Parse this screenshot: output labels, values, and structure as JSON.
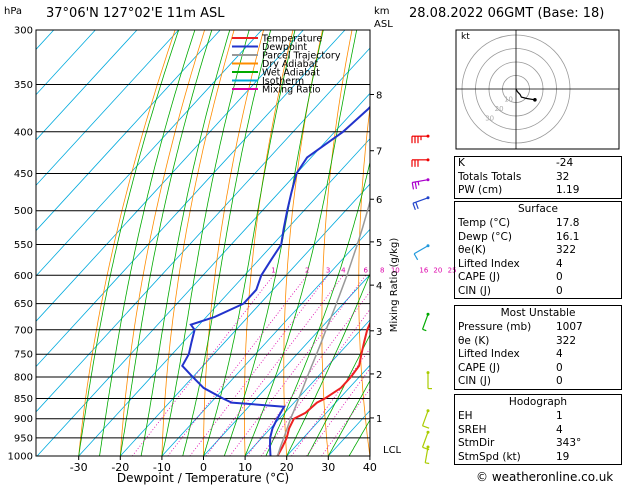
{
  "header": {
    "location": "37°06'N  127°02'E  11m  ASL",
    "datetime": "28.08.2022  06GMT  (Base: 18)",
    "left_unit": "hPa",
    "km_unit": "km",
    "asl_unit": "ASL",
    "xlabel": "Dewpoint / Temperature (°C)",
    "mixing_label": "Mixing Ratio (g/kg)",
    "lcl_label": "LCL",
    "hodo_unit": "kt",
    "credit": "© weatheronline.co.uk"
  },
  "legend": [
    {
      "label": "Temperature",
      "color": "#ee2222"
    },
    {
      "label": "Dewpoint",
      "color": "#2233cc"
    },
    {
      "label": "Parcel Trajectory",
      "color": "#999999"
    },
    {
      "label": "Dry Adiabat",
      "color": "#ff8c00"
    },
    {
      "label": "Wet Adiabat",
      "color": "#00aa00"
    },
    {
      "label": "Isotherm",
      "color": "#00aadd"
    },
    {
      "label": "Mixing Ratio",
      "color": "#dd00aa"
    }
  ],
  "indices": [
    {
      "label": "K",
      "value": "-24"
    },
    {
      "label": "Totals Totals",
      "value": "32"
    },
    {
      "label": "PW (cm)",
      "value": "1.19"
    }
  ],
  "surface": {
    "title": "Surface",
    "rows": [
      {
        "label": "Temp (°C)",
        "value": "17.8"
      },
      {
        "label": "Dewp (°C)",
        "value": "16.1"
      },
      {
        "label": "θe(K)",
        "value": "322"
      },
      {
        "label": "Lifted Index",
        "value": "4"
      },
      {
        "label": "CAPE (J)",
        "value": "0"
      },
      {
        "label": "CIN (J)",
        "value": "0"
      }
    ]
  },
  "most_unstable": {
    "title": "Most Unstable",
    "rows": [
      {
        "label": "Pressure (mb)",
        "value": "1007"
      },
      {
        "label": "θe (K)",
        "value": "322"
      },
      {
        "label": "Lifted Index",
        "value": "4"
      },
      {
        "label": "CAPE (J)",
        "value": "0"
      },
      {
        "label": "CIN (J)",
        "value": "0"
      }
    ]
  },
  "hodograph": {
    "title": "Hodograph",
    "rows": [
      {
        "label": "EH",
        "value": "1"
      },
      {
        "label": "SREH",
        "value": "4"
      },
      {
        "label": "StmDir",
        "value": "343°"
      },
      {
        "label": "StmSpd (kt)",
        "value": "19"
      }
    ]
  },
  "chart_data": {
    "type": "line",
    "title": "",
    "xlabel": "Dewpoint / Temperature (°C)",
    "ylabel": "hPa",
    "x_ticks": [
      -30,
      -20,
      -10,
      0,
      10,
      20,
      30,
      40
    ],
    "pressure_ticks": [
      300,
      350,
      400,
      450,
      500,
      550,
      600,
      650,
      700,
      750,
      800,
      850,
      900,
      950,
      1000
    ],
    "km_ticks": [
      {
        "label": "8",
        "p": 360
      },
      {
        "label": "7",
        "p": 422
      },
      {
        "label": "6",
        "p": 484
      },
      {
        "label": "5",
        "p": 546
      },
      {
        "label": "4",
        "p": 617
      },
      {
        "label": "3",
        "p": 702
      },
      {
        "label": "2",
        "p": 793
      },
      {
        "label": "1",
        "p": 898
      }
    ],
    "mixing_ratio_labels": [
      "1",
      "2",
      "3",
      "4",
      "6",
      "8",
      "10",
      "16",
      "20",
      "25"
    ],
    "series": [
      {
        "name": "Temperature",
        "color": "#ee2222",
        "points": [
          [
            1000,
            17.8
          ],
          [
            975,
            17
          ],
          [
            950,
            16
          ],
          [
            925,
            14.5
          ],
          [
            900,
            13.5
          ],
          [
            885,
            15
          ],
          [
            860,
            15.5
          ],
          [
            850,
            16.5
          ],
          [
            825,
            18
          ],
          [
            800,
            18
          ],
          [
            775,
            17.5
          ],
          [
            750,
            15.5
          ],
          [
            725,
            13.5
          ],
          [
            700,
            11.5
          ],
          [
            675,
            10
          ],
          [
            650,
            8
          ],
          [
            625,
            6
          ],
          [
            600,
            4
          ],
          [
            575,
            1.5
          ],
          [
            550,
            -1
          ],
          [
            525,
            -3.5
          ],
          [
            500,
            -6
          ],
          [
            475,
            -8.5
          ],
          [
            450,
            -10
          ],
          [
            425,
            -12
          ],
          [
            400,
            -15.5
          ],
          [
            375,
            -19
          ],
          [
            350,
            -22.5
          ],
          [
            325,
            -26.5
          ],
          [
            300,
            -30
          ]
        ]
      },
      {
        "name": "Dewpoint",
        "color": "#2233cc",
        "points": [
          [
            1000,
            16.1
          ],
          [
            975,
            14
          ],
          [
            950,
            12
          ],
          [
            925,
            10.5
          ],
          [
            900,
            9.5
          ],
          [
            870,
            8.5
          ],
          [
            860,
            -5
          ],
          [
            850,
            -8
          ],
          [
            825,
            -15
          ],
          [
            800,
            -20
          ],
          [
            775,
            -25
          ],
          [
            750,
            -26
          ],
          [
            725,
            -28
          ],
          [
            700,
            -30
          ],
          [
            690,
            -32
          ],
          [
            675,
            -28
          ],
          [
            650,
            -24
          ],
          [
            625,
            -24
          ],
          [
            600,
            -26
          ],
          [
            575,
            -27
          ],
          [
            550,
            -28
          ],
          [
            525,
            -31
          ],
          [
            500,
            -34
          ],
          [
            475,
            -37
          ],
          [
            450,
            -40
          ],
          [
            430,
            -41
          ],
          [
            400,
            -38
          ],
          [
            375,
            -37
          ],
          [
            350,
            -37
          ],
          [
            325,
            -38
          ],
          [
            300,
            -38
          ]
        ]
      },
      {
        "name": "Parcel Trajectory",
        "color": "#999999",
        "points": [
          [
            1000,
            17.8
          ],
          [
            975,
            16.5
          ],
          [
            950,
            15.3
          ],
          [
            925,
            14
          ],
          [
            900,
            12.7
          ],
          [
            875,
            11.5
          ],
          [
            850,
            10.2
          ],
          [
            825,
            8.9
          ],
          [
            800,
            7.5
          ],
          [
            775,
            6.1
          ],
          [
            750,
            4.7
          ],
          [
            725,
            3.2
          ],
          [
            700,
            1.6
          ],
          [
            675,
            0
          ],
          [
            650,
            -1.7
          ],
          [
            625,
            -3.5
          ],
          [
            600,
            -5.4
          ],
          [
            575,
            -7.5
          ],
          [
            550,
            -9.7
          ],
          [
            525,
            -12.1
          ],
          [
            500,
            -14.7
          ],
          [
            475,
            -17.5
          ],
          [
            450,
            -20.5
          ],
          [
            425,
            -23.8
          ],
          [
            400,
            -27.4
          ],
          [
            375,
            -31.4
          ],
          [
            350,
            -35.8
          ],
          [
            325,
            -40.6
          ],
          [
            300,
            -46
          ]
        ]
      }
    ],
    "wind_barbs": [
      {
        "p": 405,
        "dir": 270,
        "kt": 35,
        "color": "#ee0000"
      },
      {
        "p": 433,
        "dir": 270,
        "kt": 30,
        "color": "#ee0000"
      },
      {
        "p": 458,
        "dir": 260,
        "kt": 25,
        "color": "#aa00cc"
      },
      {
        "p": 482,
        "dir": 250,
        "kt": 20,
        "color": "#2244cc"
      },
      {
        "p": 552,
        "dir": 240,
        "kt": 10,
        "color": "#2299dd"
      },
      {
        "p": 670,
        "dir": 200,
        "kt": 5,
        "color": "#00aa00"
      },
      {
        "p": 790,
        "dir": 180,
        "kt": 5,
        "color": "#aacc00"
      },
      {
        "p": 880,
        "dir": 200,
        "kt": 10,
        "color": "#aacc00"
      },
      {
        "p": 935,
        "dir": 200,
        "kt": 10,
        "color": "#aacc00"
      },
      {
        "p": 975,
        "dir": 190,
        "kt": 5,
        "color": "#aacc00"
      }
    ],
    "hodograph_rings_kt": [
      10,
      20,
      30,
      40
    ],
    "hodograph_ring_labels": [
      "10",
      "20",
      "30"
    ],
    "hodograph_trace": [
      [
        0,
        0
      ],
      [
        1,
        2
      ],
      [
        3,
        4
      ],
      [
        4,
        6
      ],
      [
        8,
        7
      ],
      [
        14,
        8
      ]
    ]
  }
}
